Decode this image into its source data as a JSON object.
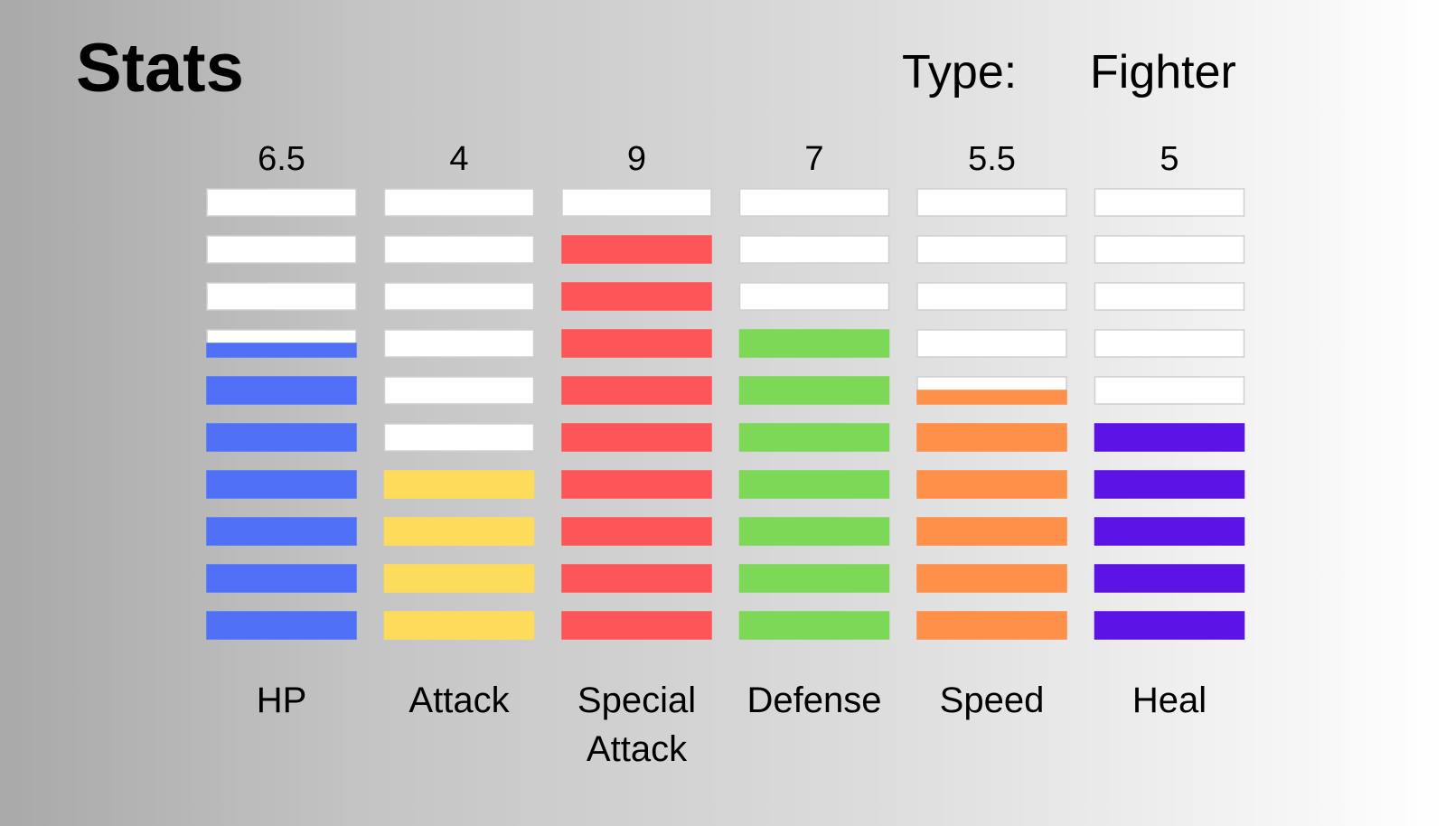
{
  "header": {
    "title": "Stats",
    "type_label": "Type:",
    "type_value": "Fighter"
  },
  "chart_data": {
    "type": "bar",
    "categories": [
      "HP",
      "Attack",
      "Special\nAttack",
      "Defense",
      "Speed",
      "Heal"
    ],
    "values": [
      6.5,
      4,
      9,
      7,
      5.5,
      5
    ],
    "value_labels": [
      "6.5",
      "4",
      "9",
      "7",
      "5.5",
      "5"
    ],
    "segments_per_bar": 10,
    "ylim": [
      0,
      10
    ],
    "colors": [
      "#4f70f7",
      "#fddc5b",
      "#fd5558",
      "#7dd857",
      "#fe9049",
      "#5b13e6"
    ],
    "empty_color": "#ffffff"
  }
}
